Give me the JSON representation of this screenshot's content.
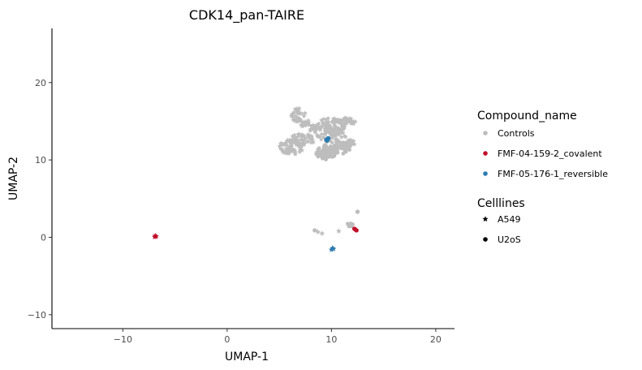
{
  "chart_data": {
    "type": "scatter",
    "title": "CDK14_pan-TAIRE",
    "xlabel": "UMAP-1",
    "ylabel": "UMAP-2",
    "xlim": [
      -16.8,
      21.8
    ],
    "ylim": [
      -11.8,
      27
    ],
    "xticks": [
      -10,
      0,
      10,
      20
    ],
    "yticks": [
      -10,
      0,
      10,
      20
    ],
    "xtick_labels": [
      "−10",
      "0",
      "10",
      "20"
    ],
    "ytick_labels": [
      "−10",
      "0",
      "10",
      "20"
    ],
    "grid": false,
    "legend_placement": "right",
    "colors": {
      "Controls": "#bdbdbd",
      "FMF-04-159-2_covalent": "#c0102a",
      "FMF-05-176-1_reversible": "#2b7bb0"
    },
    "legend": {
      "color_title": "Compound_name",
      "color_entries": [
        "Controls",
        "FMF-04-159-2_covalent",
        "FMF-05-176-1_reversible"
      ],
      "shape_title": "Celllines",
      "shape_entries": [
        "A549",
        "U2oS"
      ]
    },
    "clusters": [
      {
        "series": "Controls",
        "shape": "star",
        "cx": 6.2,
        "cy": 11.7,
        "rx": 1.2,
        "ry": 1.0,
        "n": 70
      },
      {
        "series": "Controls",
        "shape": "star",
        "cx": 7.2,
        "cy": 12.6,
        "rx": 1.2,
        "ry": 0.8,
        "n": 50
      },
      {
        "series": "Controls",
        "shape": "star",
        "cx": 6.8,
        "cy": 15.8,
        "rx": 0.7,
        "ry": 0.9,
        "n": 35
      },
      {
        "series": "Controls",
        "shape": "star",
        "cx": 7.3,
        "cy": 14.8,
        "rx": 0.6,
        "ry": 0.5,
        "n": 15
      },
      {
        "series": "Controls",
        "shape": "star",
        "cx": 8.3,
        "cy": 14.2,
        "rx": 0.5,
        "ry": 0.6,
        "n": 15
      },
      {
        "series": "Controls",
        "shape": "star",
        "cx": 10.0,
        "cy": 13.8,
        "rx": 1.6,
        "ry": 1.7,
        "n": 90
      },
      {
        "series": "Controls",
        "shape": "star",
        "cx": 11.4,
        "cy": 15.0,
        "rx": 0.9,
        "ry": 0.5,
        "n": 40
      },
      {
        "series": "Controls",
        "shape": "star",
        "cx": 11.8,
        "cy": 12.2,
        "rx": 0.5,
        "ry": 0.5,
        "n": 15
      },
      {
        "series": "Controls",
        "shape": "circle",
        "cx": 9.5,
        "cy": 11.0,
        "rx": 1.0,
        "ry": 1.0,
        "n": 70
      },
      {
        "series": "Controls",
        "shape": "circle",
        "cx": 11.0,
        "cy": 11.6,
        "rx": 0.9,
        "ry": 0.8,
        "n": 40
      },
      {
        "series": "Controls",
        "shape": "circle",
        "cx": 10.2,
        "cy": 14.2,
        "rx": 1.0,
        "ry": 1.0,
        "n": 40
      },
      {
        "series": "Controls",
        "shape": "circle",
        "cx": 11.8,
        "cy": 1.6,
        "rx": 0.3,
        "ry": 0.3,
        "n": 8
      }
    ],
    "points": [
      {
        "series": "Controls",
        "shape": "circle",
        "x": 12.5,
        "y": 3.3
      },
      {
        "series": "Controls",
        "shape": "circle",
        "x": 8.4,
        "y": 0.9
      },
      {
        "series": "Controls",
        "shape": "star",
        "x": 8.7,
        "y": 0.7
      },
      {
        "series": "Controls",
        "shape": "star",
        "x": 9.1,
        "y": 0.5
      },
      {
        "series": "Controls",
        "shape": "star",
        "x": 10.7,
        "y": 0.8
      },
      {
        "series": "FMF-05-176-1_reversible",
        "shape": "circle",
        "x": 9.6,
        "y": 12.5
      },
      {
        "series": "FMF-05-176-1_reversible",
        "shape": "circle",
        "x": 9.7,
        "y": 12.8
      },
      {
        "series": "FMF-05-176-1_reversible",
        "shape": "circle",
        "x": 9.5,
        "y": 12.6
      },
      {
        "series": "FMF-05-176-1_reversible",
        "shape": "star",
        "x": 10.1,
        "y": -1.4
      },
      {
        "series": "FMF-05-176-1_reversible",
        "shape": "star",
        "x": 10.0,
        "y": -1.6
      },
      {
        "series": "FMF-05-176-1_reversible",
        "shape": "star",
        "x": 10.2,
        "y": -1.5
      },
      {
        "series": "FMF-04-159-2_covalent",
        "shape": "star",
        "x": -6.9,
        "y": 0.2
      },
      {
        "series": "FMF-04-159-2_covalent",
        "shape": "star",
        "x": -6.8,
        "y": 0.1
      },
      {
        "series": "FMF-04-159-2_covalent",
        "shape": "star",
        "x": -6.95,
        "y": 0.05
      },
      {
        "series": "FMF-04-159-2_covalent",
        "shape": "circle",
        "x": 12.2,
        "y": 1.1
      },
      {
        "series": "FMF-04-159-2_covalent",
        "shape": "circle",
        "x": 12.4,
        "y": 0.9
      },
      {
        "series": "FMF-04-159-2_covalent",
        "shape": "circle",
        "x": 12.3,
        "y": 1.0
      }
    ]
  }
}
